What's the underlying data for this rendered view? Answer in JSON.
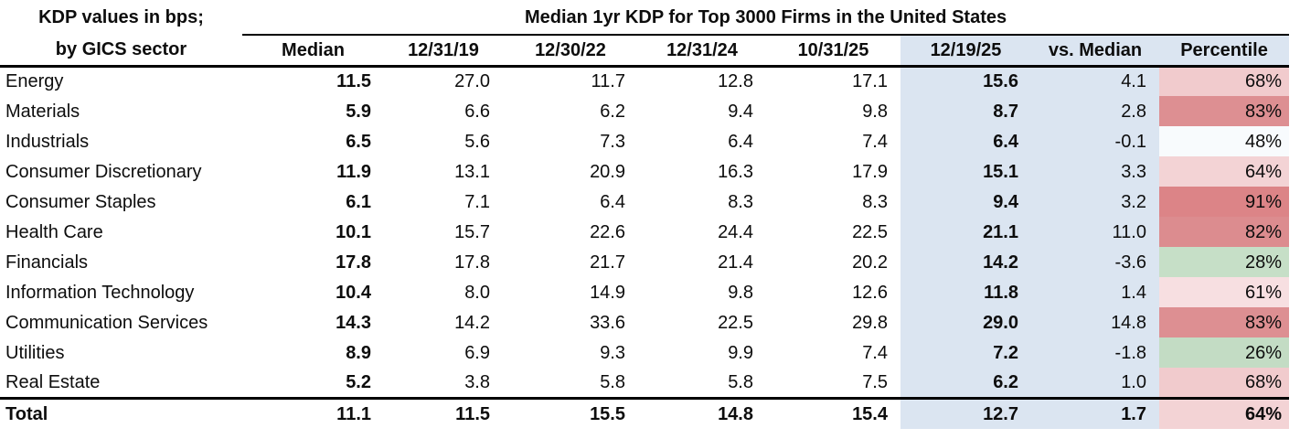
{
  "chart_data": {
    "type": "table",
    "title": "Median 1yr KDP for Top 3000 Firms in the United States",
    "corner": {
      "line1": "KDP values in bps;",
      "line2": "by GICS sector"
    },
    "columns": [
      "Median",
      "12/31/19",
      "12/30/22",
      "12/31/24",
      "10/31/25",
      "12/19/25",
      "vs. Median",
      "Percentile"
    ],
    "highlight_color": "#dbe5f1",
    "rows": [
      {
        "sector": "Energy",
        "values": [
          "11.5",
          "27.0",
          "11.7",
          "12.8",
          "17.1",
          "15.6",
          "4.1"
        ],
        "percentile": "68%",
        "pct_bg": "#f1cbcd"
      },
      {
        "sector": "Materials",
        "values": [
          "5.9",
          "6.6",
          "6.2",
          "9.4",
          "9.8",
          "8.7",
          "2.8"
        ],
        "percentile": "83%",
        "pct_bg": "#dd8f92"
      },
      {
        "sector": "Industrials",
        "values": [
          "6.5",
          "5.6",
          "7.3",
          "6.4",
          "7.4",
          "6.4",
          "-0.1"
        ],
        "percentile": "48%",
        "pct_bg": "#f8fbfd"
      },
      {
        "sector": "Consumer Discretionary",
        "values": [
          "11.9",
          "13.1",
          "20.9",
          "16.3",
          "17.9",
          "15.1",
          "3.3"
        ],
        "percentile": "64%",
        "pct_bg": "#f3d3d5"
      },
      {
        "sector": "Consumer Staples",
        "values": [
          "6.1",
          "7.1",
          "6.4",
          "8.3",
          "8.3",
          "9.4",
          "3.2"
        ],
        "percentile": "91%",
        "pct_bg": "#dc8487"
      },
      {
        "sector": "Health Care",
        "values": [
          "10.1",
          "15.7",
          "22.6",
          "24.4",
          "22.5",
          "21.1",
          "11.0"
        ],
        "percentile": "82%",
        "pct_bg": "#dc8c8f"
      },
      {
        "sector": "Financials",
        "values": [
          "17.8",
          "17.8",
          "21.7",
          "21.4",
          "20.2",
          "14.2",
          "-3.6"
        ],
        "percentile": "28%",
        "pct_bg": "#c6dfc7"
      },
      {
        "sector": "Information Technology",
        "values": [
          "10.4",
          "8.0",
          "14.9",
          "9.8",
          "12.6",
          "11.8",
          "1.4"
        ],
        "percentile": "61%",
        "pct_bg": "#f7dfe1"
      },
      {
        "sector": "Communication Services",
        "values": [
          "14.3",
          "14.2",
          "33.6",
          "22.5",
          "29.8",
          "29.0",
          "14.8"
        ],
        "percentile": "83%",
        "pct_bg": "#dd8f92"
      },
      {
        "sector": "Utilities",
        "values": [
          "8.9",
          "6.9",
          "9.3",
          "9.9",
          "7.4",
          "7.2",
          "-1.8"
        ],
        "percentile": "26%",
        "pct_bg": "#c3dcc4"
      },
      {
        "sector": "Real Estate",
        "values": [
          "5.2",
          "3.8",
          "5.8",
          "5.8",
          "7.5",
          "6.2",
          "1.0"
        ],
        "percentile": "68%",
        "pct_bg": "#f1cbcd"
      }
    ],
    "total": {
      "sector": "Total",
      "values": [
        "11.1",
        "11.5",
        "15.5",
        "14.8",
        "15.4",
        "12.7",
        "1.7"
      ],
      "percentile": "64%",
      "pct_bg": "#f3d3d5"
    }
  }
}
